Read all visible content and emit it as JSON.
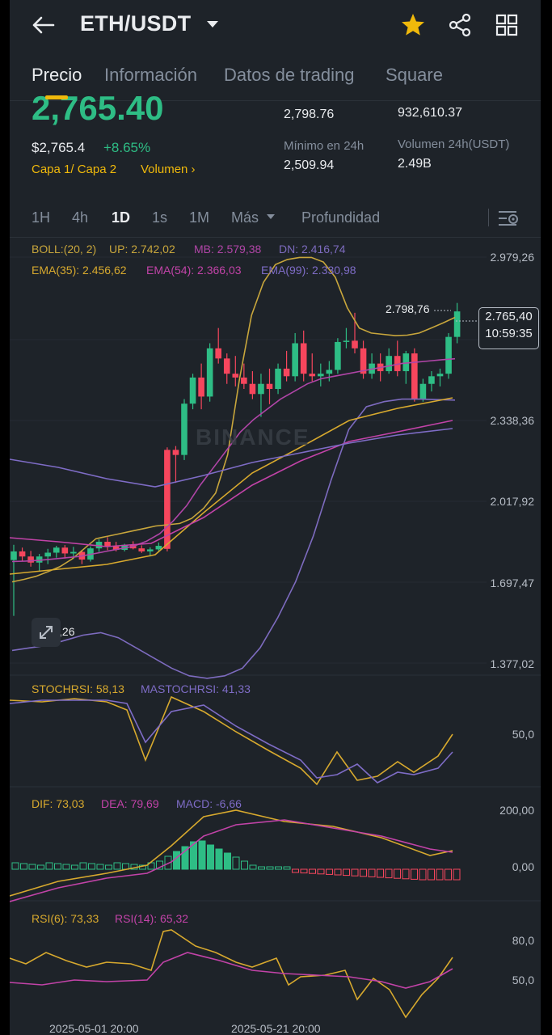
{
  "header": {
    "pair": "ETH/USDT",
    "icons": [
      "back-arrow-icon",
      "chevron-down-icon",
      "star-icon",
      "share-icon",
      "grid-icon"
    ],
    "star_color": "#f0b90b"
  },
  "tabs": [
    {
      "label": "Precio",
      "active": true
    },
    {
      "label": "Información",
      "active": false
    },
    {
      "label": "Datos de trading",
      "active": false
    },
    {
      "label": "Square",
      "active": false
    }
  ],
  "price": {
    "last": "2,765.40",
    "fiat": "$2,765.4",
    "change": "+8.65%",
    "layer": "Capa 1/ Capa 2",
    "volume_link": "Volumen"
  },
  "stats": {
    "high_value": "2,798.76",
    "vol_eth_value": "932,610.37",
    "low_label": "Mínimo en 24h",
    "low_value": "2,509.94",
    "vol_usdt_label": "Volumen 24h(USDT)",
    "vol_usdt_value": "2.49B"
  },
  "timeframes": [
    {
      "label": "1H",
      "active": false
    },
    {
      "label": "4h",
      "active": false
    },
    {
      "label": "1D",
      "active": true
    },
    {
      "label": "1s",
      "active": false
    },
    {
      "label": "1M",
      "active": false
    },
    {
      "label": "Más",
      "active": false
    },
    {
      "label": "Profundidad",
      "active": false
    }
  ],
  "indicators": {
    "boll": "BOLL:(20, 2)",
    "up": "UP: 2.742,02",
    "mb": "MB: 2.579,38",
    "dn": "DN: 2.416,74",
    "ema35": "EMA(35): 2.456,62",
    "ema54": "EMA(54): 2.366,03",
    "ema99": "EMA(99): 2.330,98",
    "stochrsi": "STOCHRSI: 58,13",
    "mastochrsi": "MASTOCHRSI: 41,33",
    "dif": "DIF: 73,03",
    "dea": "DEA: 79,69",
    "macd": "MACD: -6,66",
    "rsi6": "RSI(6): 73,33",
    "rsi14": "RSI(14): 65,32"
  },
  "axis": {
    "price_ticks": [
      "2.979,26",
      "2.338,36",
      "2.017,92",
      "1.697,47",
      "1.377,02"
    ],
    "stoch_ticks": [
      "50,0"
    ],
    "macd_ticks": [
      "200,00",
      "0,00"
    ],
    "rsi_ticks": [
      "80,0",
      "50,0"
    ],
    "dates": [
      "2025-05-01 20:00",
      "2025-05-21 20:00"
    ]
  },
  "markers": {
    "high": "2.798,76",
    "current_price": "2.765,40",
    "countdown": "10:59:35",
    "low": "1.537,26"
  },
  "watermark": "BINANCE",
  "colors": {
    "up": "#2ebd85",
    "down": "#f6465d",
    "accent": "#f0b90b",
    "boll_up": "#c8a63c",
    "boll_mb": "#b045a7",
    "boll_dn": "#7d6bbf",
    "ema35": "#d7a92e",
    "ema54": "#c243a8",
    "ema99": "#7e6cc6"
  },
  "chart_data": {
    "type": "candlestick",
    "interval": "1D",
    "price_ticks": [
      2979.26,
      2338.36,
      2017.92,
      1697.47,
      1377.02
    ],
    "last_price": 2765.4,
    "high_marker": 2798.76,
    "low_marker": 1537.26,
    "candles": [
      [
        1786,
        1846,
        1566,
        1820
      ],
      [
        1820,
        1835,
        1780,
        1800
      ],
      [
        1800,
        1822,
        1760,
        1776
      ],
      [
        1776,
        1810,
        1740,
        1800
      ],
      [
        1800,
        1830,
        1770,
        1815
      ],
      [
        1815,
        1842,
        1795,
        1835
      ],
      [
        1835,
        1845,
        1792,
        1812
      ],
      [
        1812,
        1838,
        1790,
        1818
      ],
      [
        1818,
        1826,
        1770,
        1788
      ],
      [
        1788,
        1840,
        1780,
        1832
      ],
      [
        1832,
        1868,
        1818,
        1858
      ],
      [
        1858,
        1876,
        1825,
        1840
      ],
      [
        1840,
        1858,
        1820,
        1826
      ],
      [
        1826,
        1850,
        1820,
        1846
      ],
      [
        1846,
        1860,
        1828,
        1832
      ],
      [
        1832,
        1844,
        1814,
        1820
      ],
      [
        1820,
        1836,
        1800,
        1828
      ],
      [
        1828,
        1855,
        1822,
        1842
      ],
      [
        2220,
        2230,
        1820,
        1830
      ],
      [
        2220,
        2235,
        2090,
        2200
      ],
      [
        2200,
        2420,
        2180,
        2402
      ],
      [
        2402,
        2520,
        2380,
        2505
      ],
      [
        2505,
        2560,
        2380,
        2430
      ],
      [
        2430,
        2640,
        2410,
        2620
      ],
      [
        2620,
        2700,
        2560,
        2580
      ],
      [
        2580,
        2600,
        2480,
        2520
      ],
      [
        2520,
        2590,
        2470,
        2505
      ],
      [
        2505,
        2560,
        2460,
        2480
      ],
      [
        2480,
        2530,
        2420,
        2440
      ],
      [
        2440,
        2520,
        2350,
        2480
      ],
      [
        2480,
        2540,
        2400,
        2460
      ],
      [
        2460,
        2560,
        2440,
        2540
      ],
      [
        2540,
        2610,
        2490,
        2510
      ],
      [
        2510,
        2680,
        2490,
        2640
      ],
      [
        2640,
        2690,
        2490,
        2520
      ],
      [
        2520,
        2600,
        2490,
        2510
      ],
      [
        2510,
        2560,
        2470,
        2520
      ],
      [
        2520,
        2570,
        2490,
        2535
      ],
      [
        2535,
        2660,
        2520,
        2645
      ],
      [
        2645,
        2700,
        2620,
        2650
      ],
      [
        2650,
        2760,
        2600,
        2620
      ],
      [
        2620,
        2650,
        2500,
        2520
      ],
      [
        2520,
        2600,
        2500,
        2560
      ],
      [
        2560,
        2600,
        2490,
        2530
      ],
      [
        2530,
        2620,
        2520,
        2590
      ],
      [
        2590,
        2650,
        2510,
        2530
      ],
      [
        2530,
        2610,
        2480,
        2600
      ],
      [
        2600,
        2620,
        2410,
        2420
      ],
      [
        2420,
        2500,
        2410,
        2480
      ],
      [
        2480,
        2530,
        2450,
        2510
      ],
      [
        2510,
        2540,
        2470,
        2520
      ],
      [
        2520,
        2680,
        2500,
        2665
      ],
      [
        2665,
        2798.76,
        2640,
        2765.4
      ]
    ],
    "boll_up": [
      1700,
      1710,
      1722,
      1740,
      1760,
      1790,
      1830,
      1870,
      1880,
      1890,
      1900,
      1910,
      1920,
      1925,
      1930,
      1950,
      1990,
      2050,
      2200,
      2500,
      2750,
      2880,
      2950,
      2970,
      2978,
      2978,
      2960,
      2900,
      2780,
      2700,
      2680,
      2675,
      2670,
      2672,
      2680,
      2700,
      2720,
      2742
    ],
    "boll_mb": [
      1780,
      1782,
      1785,
      1790,
      1795,
      1800,
      1810,
      1820,
      1830,
      1840,
      1860,
      1890,
      1940,
      2000,
      2080,
      2150,
      2220,
      2290,
      2340,
      2380,
      2420,
      2450,
      2480,
      2500,
      2510,
      2520,
      2530,
      2540,
      2550,
      2560,
      2565,
      2570,
      2575,
      2579
    ],
    "boll_dn": [
      1430,
      1440,
      1450,
      1470,
      1490,
      1500,
      1480,
      1440,
      1400,
      1360,
      1330,
      1320,
      1330,
      1360,
      1440,
      1560,
      1700,
      1880,
      2100,
      2300,
      2390,
      2410,
      2420,
      2420,
      2418,
      2416
    ]
  }
}
